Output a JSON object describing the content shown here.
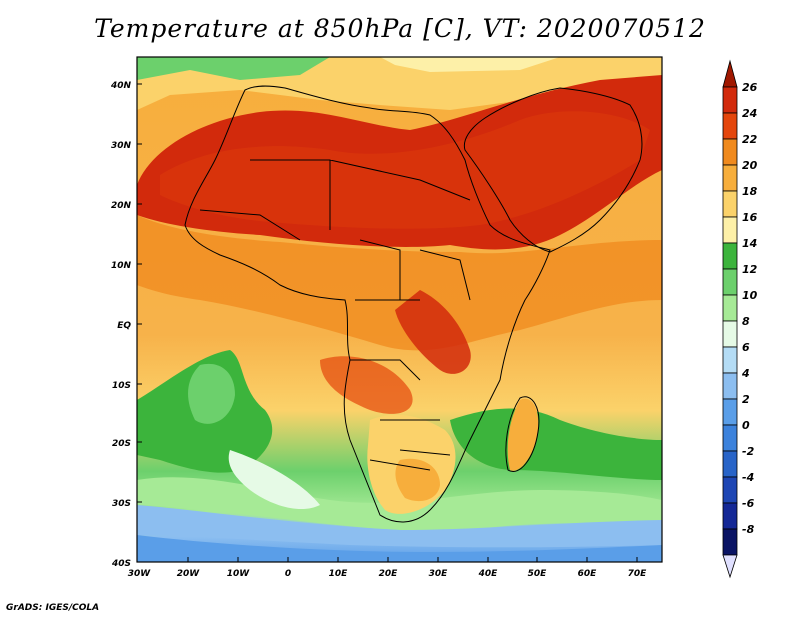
{
  "title": "Temperature at 850hPa [C], VT: 2020070512",
  "credit": "GrADS: IGES/COLA",
  "map": {
    "lat_labels": [
      "40N",
      "30N",
      "20N",
      "10N",
      "EQ",
      "10S",
      "20S",
      "30S",
      "40S"
    ],
    "lon_labels": [
      "30W",
      "20W",
      "10W",
      "0",
      "10E",
      "20E",
      "30E",
      "40E",
      "50E",
      "60E",
      "70E"
    ]
  },
  "colorbar": {
    "labels": [
      "26",
      "24",
      "22",
      "20",
      "18",
      "16",
      "14",
      "12",
      "10",
      "8",
      "6",
      "4",
      "2",
      "0",
      "-2",
      "-4",
      "-6",
      "-8"
    ],
    "colors": [
      "#a01800",
      "#d22a0c",
      "#e4460c",
      "#f08a1e",
      "#f7ae3c",
      "#fbd26a",
      "#fdf0a8",
      "#3cb43c",
      "#6cd06c",
      "#a6ea96",
      "#e6fae6",
      "#b4dcf5",
      "#8cbef0",
      "#5a9ee8",
      "#3c82dc",
      "#2864c8",
      "#1e46b4",
      "#142896",
      "#0a1464",
      "#e0e0ff"
    ]
  },
  "colors": {
    "africa_hot": "#d22a0c",
    "ocean_warm": "#f7ae3c",
    "southern_cool": "#5a9ee8"
  }
}
